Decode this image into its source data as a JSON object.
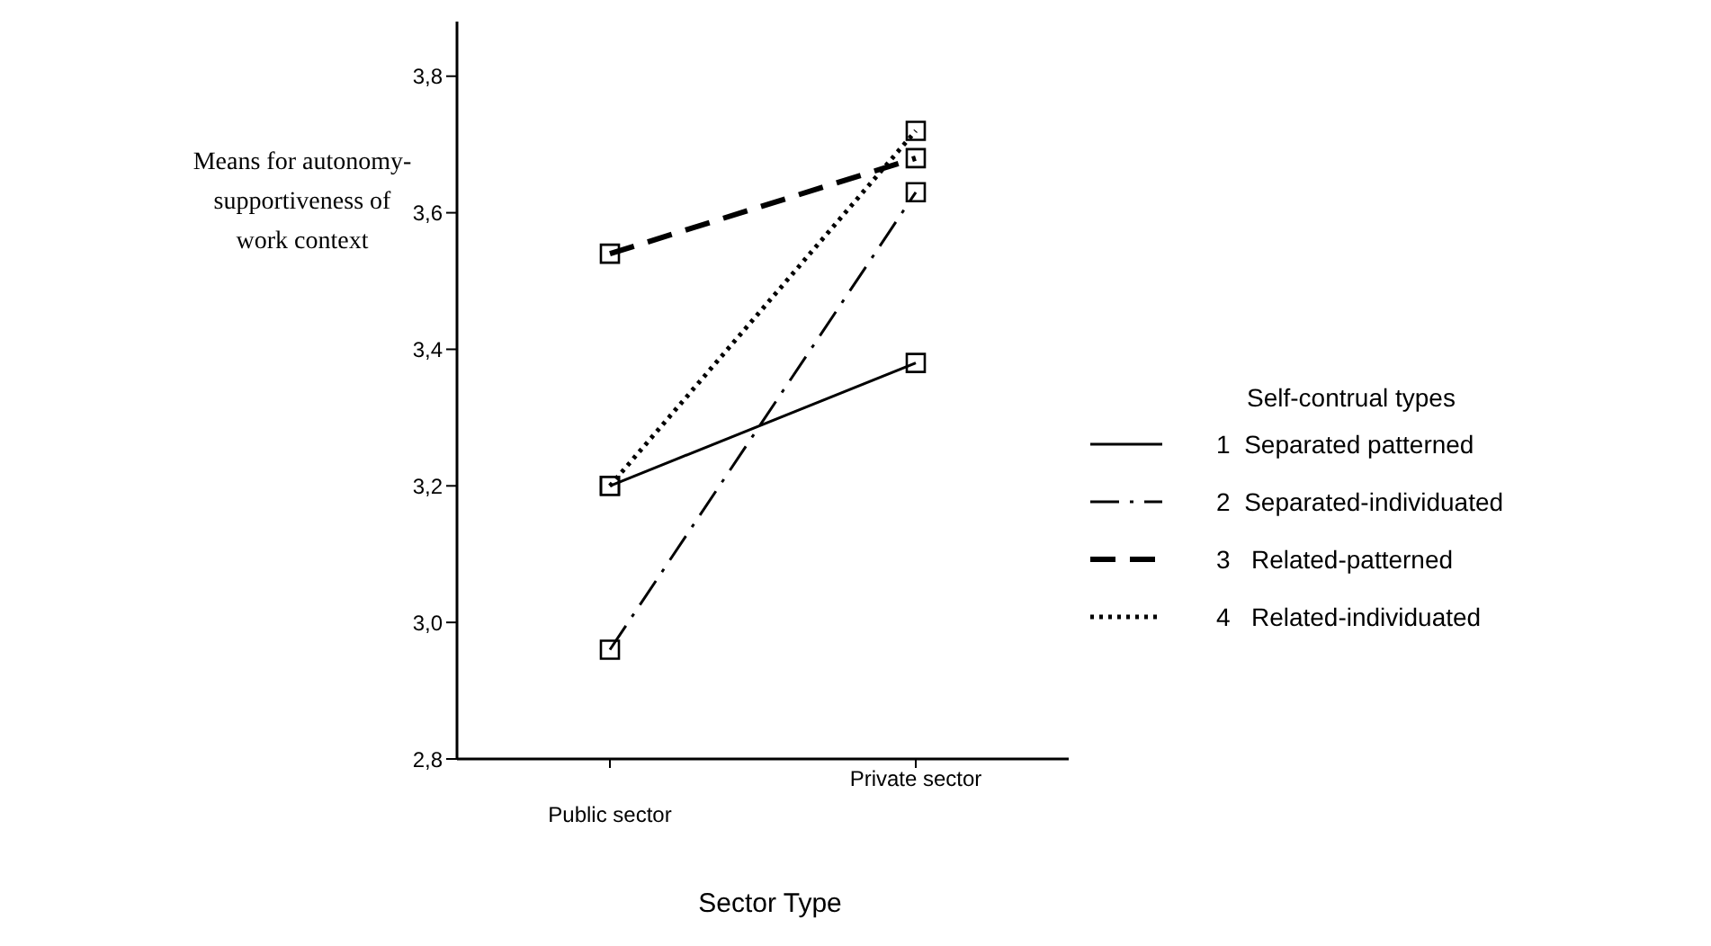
{
  "chart_data": {
    "type": "line",
    "xlabel": "Sector Type",
    "ylabel": "Means for autonomy-supportiveness of work context",
    "legend_title": "Self-contrual types",
    "categories": [
      "Public sector",
      "Private sector"
    ],
    "series": [
      {
        "name": "1  Separated patterned",
        "color": "#000000",
        "values": [
          3.2,
          3.38
        ],
        "line_style": "solid"
      },
      {
        "name": "2  Separated-individuated",
        "color": "#000000",
        "values": [
          2.96,
          3.63
        ],
        "line_style": "dashdot"
      },
      {
        "name": "3   Related-patterned",
        "color": "#000000",
        "values": [
          3.54,
          3.68
        ],
        "line_style": "dashed"
      },
      {
        "name": "4   Related-individuated",
        "color": "#000000",
        "values": [
          3.2,
          3.72
        ],
        "line_style": "dotted"
      }
    ],
    "ylim": [
      2.8,
      3.88
    ],
    "yticks": [
      {
        "value": 2.8,
        "label": "2,8"
      },
      {
        "value": 3.0,
        "label": "3,0"
      },
      {
        "value": 3.2,
        "label": "3,2"
      },
      {
        "value": 3.4,
        "label": "3,4"
      },
      {
        "value": 3.6,
        "label": "3,6"
      },
      {
        "value": 3.8,
        "label": "3,8"
      }
    ],
    "marker": "square",
    "grid": false,
    "legend": "right"
  }
}
